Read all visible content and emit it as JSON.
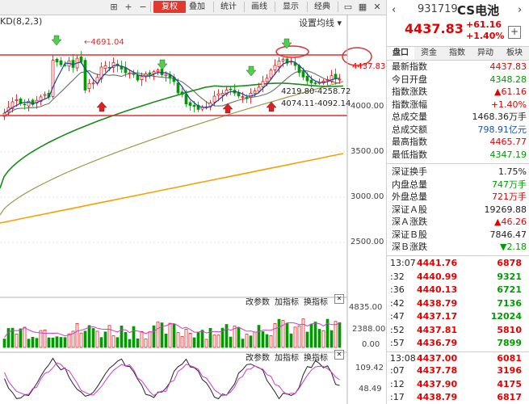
{
  "toolbar": {
    "adjust": "复权",
    "overlay": "叠加",
    "stats": "统计",
    "draw": "画线",
    "display": "显示",
    "classic": "经典"
  },
  "chart": {
    "indicator_label": "KD(8,2,3)",
    "settings_link": "设置均线",
    "high_annotation": "4691.04",
    "current_price_label": "4437.83",
    "range_annotation_1": "4219.80-4258.72",
    "range_annotation_2": "4074.11-4092.14",
    "price_axis": [
      "4000.00",
      "3500.00",
      "3000.00",
      "2500.00"
    ],
    "volume_panel": {
      "change_params": "改参数",
      "add_indicator": "加指标",
      "switch_indicator": "换指标",
      "axis": [
        "4835.00",
        "2388.00",
        "0.00"
      ]
    },
    "kd_panel": {
      "change_params": "改参数",
      "add_indicator": "加指标",
      "switch_indicator": "换指标",
      "axis": [
        "109.42",
        "48.49"
      ]
    }
  },
  "right_panel": {
    "code": "931719",
    "name": "CS电池",
    "last": "4437.83",
    "change": "+61.16",
    "change_pct": "+1.40%",
    "add_icon": "plus-icon",
    "tabs": [
      "盘口",
      "资金",
      "指数",
      "异动",
      "板块"
    ],
    "stats": [
      {
        "label": "最新指数",
        "value": "4437.83",
        "color": "red"
      },
      {
        "label": "今日开盘",
        "value": "4348.28",
        "color": "green"
      },
      {
        "label": "指数涨跌",
        "value": "▲61.16",
        "color": "red"
      },
      {
        "label": "指数涨幅",
        "value": "+1.40%",
        "color": "red"
      },
      {
        "label": "总成交量",
        "value": "1468.36万手",
        "color": "dark"
      },
      {
        "label": "总成交额",
        "value": "798.91亿元",
        "color": "blue"
      },
      {
        "label": "最高指数",
        "value": "4465.77",
        "color": "red"
      },
      {
        "label": "最低指数",
        "value": "4347.19",
        "color": "green"
      }
    ],
    "market": [
      {
        "label": "深证换手",
        "value": "1.75%",
        "color": "dark"
      },
      {
        "label": "内盘总量",
        "value": "747万手",
        "color": "green"
      },
      {
        "label": "外盘总量",
        "value": "721万手",
        "color": "red"
      },
      {
        "label": "深证Ａ股",
        "value": "19269.88",
        "color": "dark"
      },
      {
        "label": "深Ａ涨跌",
        "value": "▲46.26",
        "color": "red"
      },
      {
        "label": "深证Ｂ股",
        "value": "7846.47",
        "color": "dark"
      },
      {
        "label": "深Ｂ涨跌",
        "value": "▼2.18",
        "color": "green"
      }
    ],
    "ticks": [
      {
        "time": "13:07",
        "price": "4441.76",
        "volume": "6878",
        "vcolor": "red"
      },
      {
        "time": ":32",
        "price": "4440.99",
        "volume": "9321",
        "vcolor": "green"
      },
      {
        "time": ":36",
        "price": "4440.13",
        "volume": "6721",
        "vcolor": "green"
      },
      {
        "time": ":42",
        "price": "4438.79",
        "volume": "7136",
        "vcolor": "green"
      },
      {
        "time": ":47",
        "price": "4437.17",
        "volume": "12024",
        "vcolor": "green"
      },
      {
        "time": ":52",
        "price": "4437.81",
        "volume": "5810",
        "vcolor": "red"
      },
      {
        "time": ":57",
        "price": "4436.79",
        "volume": "7899",
        "vcolor": "green"
      },
      {
        "time": "13:08",
        "price": "4437.00",
        "volume": "6081",
        "vcolor": "red"
      },
      {
        "time": ":07",
        "price": "4437.78",
        "volume": "3196",
        "vcolor": "red"
      },
      {
        "time": ":12",
        "price": "4437.90",
        "volume": "4175",
        "vcolor": "red"
      },
      {
        "time": ":17",
        "price": "4438.79",
        "volume": "6817",
        "vcolor": "red"
      }
    ]
  },
  "colors": {
    "up": "#e60000",
    "down": "#009b00",
    "ma_orange": "#f5a200",
    "ma_green": "#1a8a1a",
    "ma_olive": "#9a9a4a",
    "ma_gray": "#6e6e6e",
    "support_line": "#e03030",
    "k_line": "#222222",
    "d_line": "#d23ad2"
  }
}
